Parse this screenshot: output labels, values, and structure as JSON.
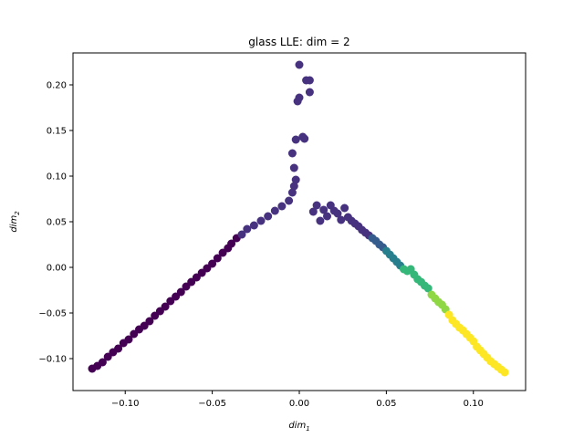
{
  "chart_data": {
    "type": "scatter",
    "title": "glass LLE: dim = 2",
    "xlabel": "dim",
    "xlabel_sub": "1",
    "ylabel": "dim",
    "ylabel_sub": "2",
    "xlim": [
      -0.13,
      0.13
    ],
    "ylim": [
      -0.135,
      0.235
    ],
    "xticks": [
      -0.1,
      -0.05,
      0.0,
      0.05,
      0.1
    ],
    "xtick_labels": [
      "−0.10",
      "−0.05",
      "0.00",
      "0.05",
      "0.10"
    ],
    "yticks": [
      -0.1,
      -0.05,
      0.0,
      0.05,
      0.1,
      0.15,
      0.2
    ],
    "ytick_labels": [
      "−0.10",
      "−0.05",
      "0.00",
      "0.05",
      "0.10",
      "0.15",
      "0.20"
    ],
    "grid": false,
    "legend": "none",
    "colors": {
      "c1": "#440154",
      "c2": "#46327e",
      "c3": "#365c8d",
      "c4": "#277f8e",
      "c5": "#35b779",
      "c6": "#8fd744",
      "c7": "#fde725"
    },
    "points": [
      [
        -0.119,
        -0.111,
        "c1"
      ],
      [
        -0.116,
        -0.108,
        "c1"
      ],
      [
        -0.113,
        -0.104,
        "c1"
      ],
      [
        -0.11,
        -0.098,
        "c1"
      ],
      [
        -0.107,
        -0.093,
        "c1"
      ],
      [
        -0.104,
        -0.089,
        "c1"
      ],
      [
        -0.101,
        -0.083,
        "c1"
      ],
      [
        -0.098,
        -0.079,
        "c1"
      ],
      [
        -0.095,
        -0.073,
        "c1"
      ],
      [
        -0.092,
        -0.068,
        "c1"
      ],
      [
        -0.089,
        -0.064,
        "c1"
      ],
      [
        -0.086,
        -0.059,
        "c1"
      ],
      [
        -0.083,
        -0.053,
        "c1"
      ],
      [
        -0.08,
        -0.048,
        "c1"
      ],
      [
        -0.077,
        -0.043,
        "c1"
      ],
      [
        -0.074,
        -0.037,
        "c1"
      ],
      [
        -0.071,
        -0.032,
        "c1"
      ],
      [
        -0.068,
        -0.027,
        "c1"
      ],
      [
        -0.065,
        -0.021,
        "c1"
      ],
      [
        -0.062,
        -0.016,
        "c1"
      ],
      [
        -0.059,
        -0.011,
        "c1"
      ],
      [
        -0.056,
        -0.006,
        "c1"
      ],
      [
        -0.053,
        -0.001,
        "c1"
      ],
      [
        -0.05,
        0.004,
        "c1"
      ],
      [
        -0.047,
        0.01,
        "c1"
      ],
      [
        -0.044,
        0.016,
        "c1"
      ],
      [
        -0.041,
        0.021,
        "c1"
      ],
      [
        -0.039,
        0.026,
        "c1"
      ],
      [
        -0.036,
        0.032,
        "c1"
      ],
      [
        -0.033,
        0.036,
        "c2"
      ],
      [
        -0.03,
        0.042,
        "c2"
      ],
      [
        -0.026,
        0.046,
        "c2"
      ],
      [
        -0.022,
        0.051,
        "c2"
      ],
      [
        -0.018,
        0.056,
        "c2"
      ],
      [
        -0.014,
        0.062,
        "c2"
      ],
      [
        -0.01,
        0.067,
        "c2"
      ],
      [
        -0.006,
        0.073,
        "c2"
      ],
      [
        -0.004,
        0.082,
        "c2"
      ],
      [
        -0.003,
        0.089,
        "c2"
      ],
      [
        -0.002,
        0.096,
        "c2"
      ],
      [
        -0.003,
        0.109,
        "c2"
      ],
      [
        -0.004,
        0.125,
        "c2"
      ],
      [
        -0.002,
        0.14,
        "c2"
      ],
      [
        0.002,
        0.143,
        "c2"
      ],
      [
        0.003,
        0.141,
        "c2"
      ],
      [
        -0.001,
        0.182,
        "c2"
      ],
      [
        0.0,
        0.186,
        "c2"
      ],
      [
        0.004,
        0.205,
        "c2"
      ],
      [
        0.006,
        0.205,
        "c2"
      ],
      [
        0.006,
        0.192,
        "c2"
      ],
      [
        0.0,
        0.222,
        "c2"
      ],
      [
        0.008,
        0.061,
        "c2"
      ],
      [
        0.01,
        0.068,
        "c2"
      ],
      [
        0.012,
        0.051,
        "c2"
      ],
      [
        0.014,
        0.063,
        "c2"
      ],
      [
        0.016,
        0.056,
        "c2"
      ],
      [
        0.018,
        0.068,
        "c2"
      ],
      [
        0.02,
        0.062,
        "c2"
      ],
      [
        0.022,
        0.059,
        "c2"
      ],
      [
        0.024,
        0.052,
        "c2"
      ],
      [
        0.026,
        0.065,
        "c2"
      ],
      [
        0.028,
        0.055,
        "c2"
      ],
      [
        0.03,
        0.051,
        "c2"
      ],
      [
        0.032,
        0.048,
        "c2"
      ],
      [
        0.034,
        0.045,
        "c2"
      ],
      [
        0.036,
        0.041,
        "c2"
      ],
      [
        0.038,
        0.038,
        "c2"
      ],
      [
        0.04,
        0.035,
        "c2"
      ],
      [
        0.042,
        0.032,
        "c3"
      ],
      [
        0.044,
        0.029,
        "c3"
      ],
      [
        0.046,
        0.025,
        "c3"
      ],
      [
        0.048,
        0.022,
        "c3"
      ],
      [
        0.05,
        0.018,
        "c4"
      ],
      [
        0.052,
        0.014,
        "c4"
      ],
      [
        0.054,
        0.01,
        "c4"
      ],
      [
        0.056,
        0.006,
        "c4"
      ],
      [
        0.058,
        0.002,
        "c4"
      ],
      [
        0.06,
        -0.002,
        "c5"
      ],
      [
        0.062,
        -0.004,
        "c5"
      ],
      [
        0.064,
        -0.002,
        "c5"
      ],
      [
        0.066,
        -0.008,
        "c5"
      ],
      [
        0.068,
        -0.013,
        "c5"
      ],
      [
        0.07,
        -0.016,
        "c5"
      ],
      [
        0.072,
        -0.02,
        "c5"
      ],
      [
        0.074,
        -0.023,
        "c5"
      ],
      [
        0.076,
        -0.03,
        "c6"
      ],
      [
        0.078,
        -0.034,
        "c6"
      ],
      [
        0.08,
        -0.038,
        "c6"
      ],
      [
        0.082,
        -0.041,
        "c6"
      ],
      [
        0.084,
        -0.046,
        "c6"
      ],
      [
        0.086,
        -0.052,
        "c7"
      ],
      [
        0.088,
        -0.058,
        "c7"
      ],
      [
        0.09,
        -0.062,
        "c7"
      ],
      [
        0.092,
        -0.066,
        "c7"
      ],
      [
        0.094,
        -0.069,
        "c7"
      ],
      [
        0.096,
        -0.073,
        "c7"
      ],
      [
        0.098,
        -0.077,
        "c7"
      ],
      [
        0.1,
        -0.081,
        "c7"
      ],
      [
        0.102,
        -0.087,
        "c7"
      ],
      [
        0.104,
        -0.091,
        "c7"
      ],
      [
        0.106,
        -0.095,
        "c7"
      ],
      [
        0.108,
        -0.099,
        "c7"
      ],
      [
        0.11,
        -0.103,
        "c7"
      ],
      [
        0.112,
        -0.106,
        "c7"
      ],
      [
        0.114,
        -0.109,
        "c7"
      ],
      [
        0.116,
        -0.112,
        "c7"
      ],
      [
        0.118,
        -0.115,
        "c7"
      ]
    ]
  }
}
